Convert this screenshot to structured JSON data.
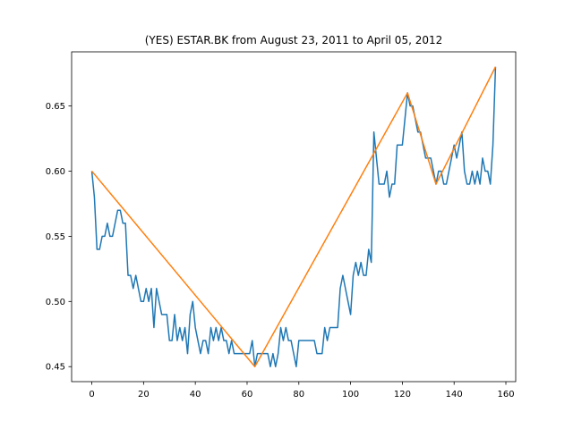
{
  "chart_data": {
    "type": "line",
    "title": "(YES) ESTAR.BK from August 23, 2011 to April 05, 2012",
    "xlabel": "",
    "ylabel": "",
    "xlim": [
      -7.8,
      163.8
    ],
    "ylim": [
      0.4385,
      0.6915
    ],
    "x_ticks": [
      0,
      20,
      40,
      60,
      80,
      100,
      120,
      140,
      160
    ],
    "y_ticks": [
      0.45,
      0.5,
      0.55,
      0.6,
      0.65
    ],
    "x_tick_labels": [
      "0",
      "20",
      "40",
      "60",
      "80",
      "100",
      "120",
      "140",
      "160"
    ],
    "y_tick_labels": [
      "0.45",
      "0.50",
      "0.55",
      "0.60",
      "0.65"
    ],
    "grid": false,
    "series": [
      {
        "color": "#1f77b4",
        "x": [
          0,
          1,
          2,
          3,
          4,
          5,
          6,
          7,
          8,
          9,
          10,
          11,
          12,
          13,
          14,
          15,
          16,
          17,
          18,
          19,
          20,
          21,
          22,
          23,
          24,
          25,
          26,
          27,
          28,
          29,
          30,
          31,
          32,
          33,
          34,
          35,
          36,
          37,
          38,
          39,
          40,
          41,
          42,
          43,
          44,
          45,
          46,
          47,
          48,
          49,
          50,
          51,
          52,
          53,
          54,
          55,
          56,
          57,
          58,
          59,
          60,
          61,
          62,
          63,
          64,
          65,
          66,
          67,
          68,
          69,
          70,
          71,
          72,
          73,
          74,
          75,
          76,
          77,
          78,
          79,
          80,
          81,
          82,
          83,
          84,
          85,
          86,
          87,
          88,
          89,
          90,
          91,
          92,
          93,
          94,
          95,
          96,
          97,
          98,
          99,
          100,
          101,
          102,
          103,
          104,
          105,
          106,
          107,
          108,
          109,
          110,
          111,
          112,
          113,
          114,
          115,
          116,
          117,
          118,
          119,
          120,
          121,
          122,
          123,
          124,
          125,
          126,
          127,
          128,
          129,
          130,
          131,
          132,
          133,
          134,
          135,
          136,
          137,
          138,
          139,
          140,
          141,
          142,
          143,
          144,
          145,
          146,
          147,
          148,
          149,
          150,
          151,
          152,
          153,
          154,
          155,
          156
        ],
        "y": [
          0.6,
          0.58,
          0.54,
          0.54,
          0.55,
          0.55,
          0.56,
          0.55,
          0.55,
          0.56,
          0.57,
          0.57,
          0.56,
          0.56,
          0.52,
          0.52,
          0.51,
          0.52,
          0.51,
          0.5,
          0.5,
          0.51,
          0.5,
          0.51,
          0.48,
          0.51,
          0.5,
          0.49,
          0.49,
          0.49,
          0.47,
          0.47,
          0.49,
          0.47,
          0.48,
          0.47,
          0.48,
          0.46,
          0.49,
          0.5,
          0.48,
          0.47,
          0.46,
          0.47,
          0.47,
          0.46,
          0.48,
          0.47,
          0.48,
          0.47,
          0.48,
          0.47,
          0.47,
          0.46,
          0.47,
          0.46,
          0.46,
          0.46,
          0.46,
          0.46,
          0.46,
          0.46,
          0.47,
          0.45,
          0.46,
          0.46,
          0.46,
          0.46,
          0.46,
          0.45,
          0.46,
          0.45,
          0.46,
          0.48,
          0.47,
          0.48,
          0.47,
          0.47,
          0.46,
          0.45,
          0.47,
          0.47,
          0.47,
          0.47,
          0.47,
          0.47,
          0.47,
          0.46,
          0.46,
          0.46,
          0.48,
          0.47,
          0.48,
          0.48,
          0.48,
          0.48,
          0.51,
          0.52,
          0.51,
          0.5,
          0.49,
          0.52,
          0.53,
          0.52,
          0.53,
          0.52,
          0.52,
          0.54,
          0.53,
          0.63,
          0.61,
          0.59,
          0.59,
          0.59,
          0.6,
          0.58,
          0.59,
          0.59,
          0.62,
          0.62,
          0.62,
          0.64,
          0.66,
          0.65,
          0.65,
          0.64,
          0.63,
          0.63,
          0.62,
          0.61,
          0.61,
          0.61,
          0.6,
          0.59,
          0.6,
          0.6,
          0.59,
          0.59,
          0.6,
          0.61,
          0.62,
          0.61,
          0.62,
          0.63,
          0.6,
          0.59,
          0.59,
          0.6,
          0.59,
          0.6,
          0.59,
          0.61,
          0.6,
          0.6,
          0.59,
          0.62,
          0.68
        ]
      },
      {
        "color": "#ff7f0e",
        "x": [
          0,
          63,
          122,
          133,
          156
        ],
        "y": [
          0.6,
          0.45,
          0.66,
          0.59,
          0.68
        ]
      }
    ]
  }
}
